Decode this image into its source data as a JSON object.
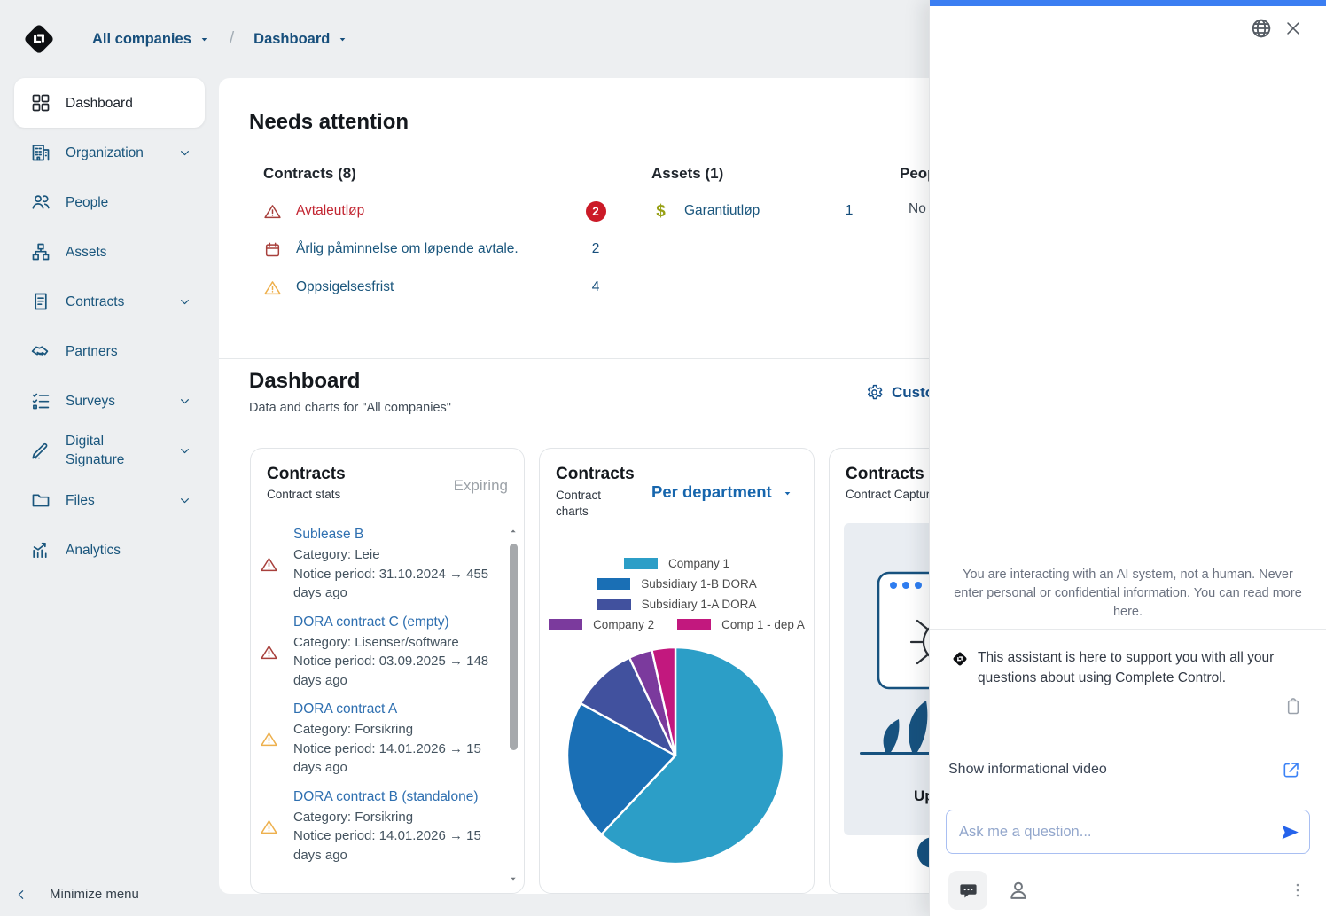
{
  "header": {
    "breadcrumb": {
      "company_selector": "All companies",
      "separator": "/",
      "page_selector": "Dashboard"
    }
  },
  "sidebar": {
    "items": [
      {
        "label": "Dashboard",
        "icon": "dashboard-grid-icon",
        "active": true,
        "expandable": false
      },
      {
        "label": "Organization",
        "icon": "organization-building-icon",
        "active": false,
        "expandable": true
      },
      {
        "label": "People",
        "icon": "people-icon",
        "active": false,
        "expandable": false
      },
      {
        "label": "Assets",
        "icon": "assets-hierarchy-icon",
        "active": false,
        "expandable": false
      },
      {
        "label": "Contracts",
        "icon": "contract-document-icon",
        "active": false,
        "expandable": true
      },
      {
        "label": "Partners",
        "icon": "handshake-icon",
        "active": false,
        "expandable": false
      },
      {
        "label": "Surveys",
        "icon": "survey-checklist-icon",
        "active": false,
        "expandable": true
      },
      {
        "label": "Digital Signature",
        "icon": "signature-pen-icon",
        "active": false,
        "expandable": true
      },
      {
        "label": "Files",
        "icon": "folder-icon",
        "active": false,
        "expandable": true
      },
      {
        "label": "Analytics",
        "icon": "analytics-chart-icon",
        "active": false,
        "expandable": false
      }
    ],
    "minimize_label": "Minimize menu"
  },
  "needs_attention": {
    "title": "Needs attention",
    "contracts": {
      "title": "Contracts (8)",
      "rows": [
        {
          "icon": "warning-triangle-icon",
          "icon_color": "#a8403c",
          "label": "Avtaleutløp",
          "label_color": "#c22531",
          "count": "2",
          "badge": true
        },
        {
          "icon": "calendar-icon",
          "icon_color": "#a8403c",
          "label": "Årlig påminnelse om løpende avtale.",
          "label_color": "#1a567d",
          "count": "2",
          "badge": false
        },
        {
          "icon": "warning-triangle-icon",
          "icon_color": "#eeaf4b",
          "label": "Oppsigelsesfrist",
          "label_color": "#1a567d",
          "count": "4",
          "badge": false
        }
      ]
    },
    "assets": {
      "title": "Assets (1)",
      "rows": [
        {
          "icon": "dollar-icon",
          "icon_color": "#97a014",
          "label": "Garantiutløp",
          "label_color": "#1a567d",
          "count": "1",
          "badge": false
        }
      ]
    },
    "people": {
      "title_clipped": "Peop",
      "row_clipped": "No r"
    }
  },
  "dashboard_section": {
    "title": "Dashboard",
    "subtitle": "Data and charts for \"All companies\"",
    "customize_label_clipped": "Custo"
  },
  "expiring_card": {
    "title": "Contracts",
    "subtitle": "Contract stats",
    "corner_label": "Expiring",
    "items": [
      {
        "severity": "high",
        "name": "Sublease B",
        "category": "Category: Leie",
        "notice": "Notice period: 31.10.2024 → 455 days ago"
      },
      {
        "severity": "high",
        "name": "DORA contract C (empty)",
        "category": "Category: Lisenser/software",
        "notice": "Notice period: 03.09.2025 → 148 days ago"
      },
      {
        "severity": "medium",
        "name": "DORA contract A",
        "category": "Category: Forsikring",
        "notice": "Notice period: 14.01.2026 → 15 days ago"
      },
      {
        "severity": "medium",
        "name": "DORA contract B (standalone)",
        "category": "Category: Forsikring",
        "notice": "Notice period: 14.01.2026 → 15 days ago"
      }
    ]
  },
  "charts_card": {
    "title": "Contracts",
    "subtitle": "Contract charts",
    "dropdown_label": "Per department"
  },
  "chart_data": {
    "type": "pie",
    "title": "Contracts per department",
    "labels": [
      "Company 1",
      "Subsidiary 1-B DORA",
      "Subsidiary 1-A DORA",
      "Company 2",
      "Comp 1 - dep A"
    ],
    "values": [
      62,
      21,
      10,
      3.5,
      3.5
    ],
    "value_note": "estimated percent shares; chart shows no numeric labels",
    "colors": [
      "#2c9ec7",
      "#1a6fb5",
      "#41519e",
      "#7b3a9d",
      "#c2187e"
    ],
    "legend_position": "top",
    "slice_gap_color": "#ffffff"
  },
  "capture_card": {
    "title": "Contracts",
    "subtitle": "Contract Capture",
    "clipped_text": "Ups"
  },
  "assistant_panel": {
    "accent_color": "#3b7ef2",
    "disclaimer": "You are interacting with an AI system, not a human. Never enter personal or confidential information. You can read more here.",
    "welcome_message": "This assistant is here to support you with all your questions about using Complete Control.",
    "video_label": "Show informational video",
    "input_placeholder": "Ask me a question..."
  }
}
